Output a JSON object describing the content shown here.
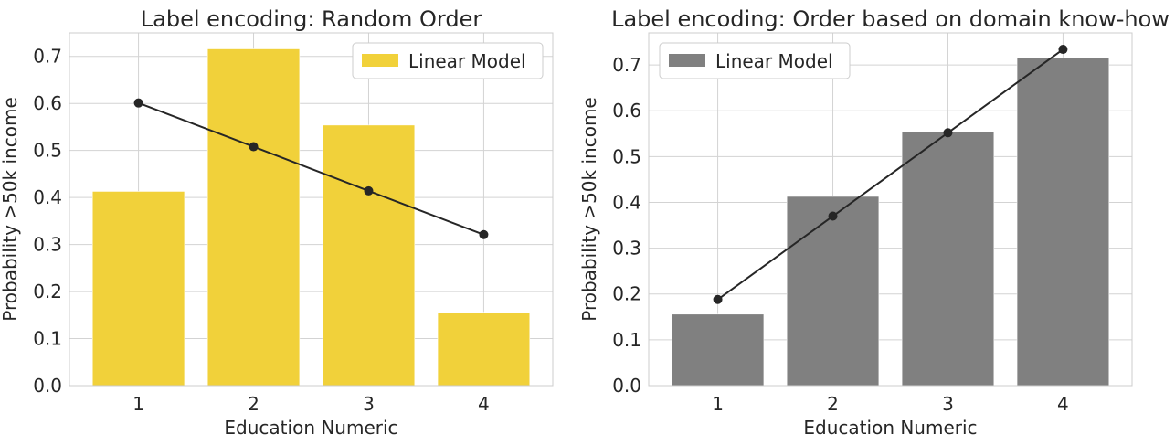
{
  "chart_data": [
    {
      "type": "bar",
      "title": "Label encoding: Random Order",
      "xlabel": "Education Numeric",
      "ylabel": "Probability >50k income",
      "categories": [
        "1",
        "2",
        "3",
        "4"
      ],
      "x": [
        1,
        2,
        3,
        4
      ],
      "ylim": [
        0,
        0.75
      ],
      "yticks": [
        "0.0",
        "0.1",
        "0.2",
        "0.3",
        "0.4",
        "0.5",
        "0.6",
        "0.7"
      ],
      "grid": true,
      "legend_position": "top-right",
      "series": [
        {
          "type": "bar",
          "values": [
            0.413,
            0.716,
            0.554,
            0.156
          ],
          "color": "#f1d13a"
        },
        {
          "type": "line",
          "values": [
            0.601,
            0.508,
            0.414,
            0.321
          ],
          "color": "#262626"
        }
      ],
      "legend": [
        {
          "label": "Linear Model",
          "color": "#f1d13a"
        }
      ]
    },
    {
      "type": "bar",
      "title": "Label encoding: Order based on domain know-how",
      "xlabel": "Education Numeric",
      "ylabel": "Probability >50k income",
      "categories": [
        "1",
        "2",
        "3",
        "4"
      ],
      "x": [
        1,
        2,
        3,
        4
      ],
      "ylim": [
        0,
        0.77
      ],
      "yticks": [
        "0.0",
        "0.1",
        "0.2",
        "0.3",
        "0.4",
        "0.5",
        "0.6",
        "0.7"
      ],
      "grid": true,
      "legend_position": "top-left",
      "series": [
        {
          "type": "bar",
          "values": [
            0.156,
            0.413,
            0.554,
            0.716
          ],
          "color": "#808080"
        },
        {
          "type": "line",
          "values": [
            0.188,
            0.37,
            0.552,
            0.734
          ],
          "color": "#262626"
        }
      ],
      "legend": [
        {
          "label": "Linear Model",
          "color": "#808080"
        }
      ]
    }
  ]
}
